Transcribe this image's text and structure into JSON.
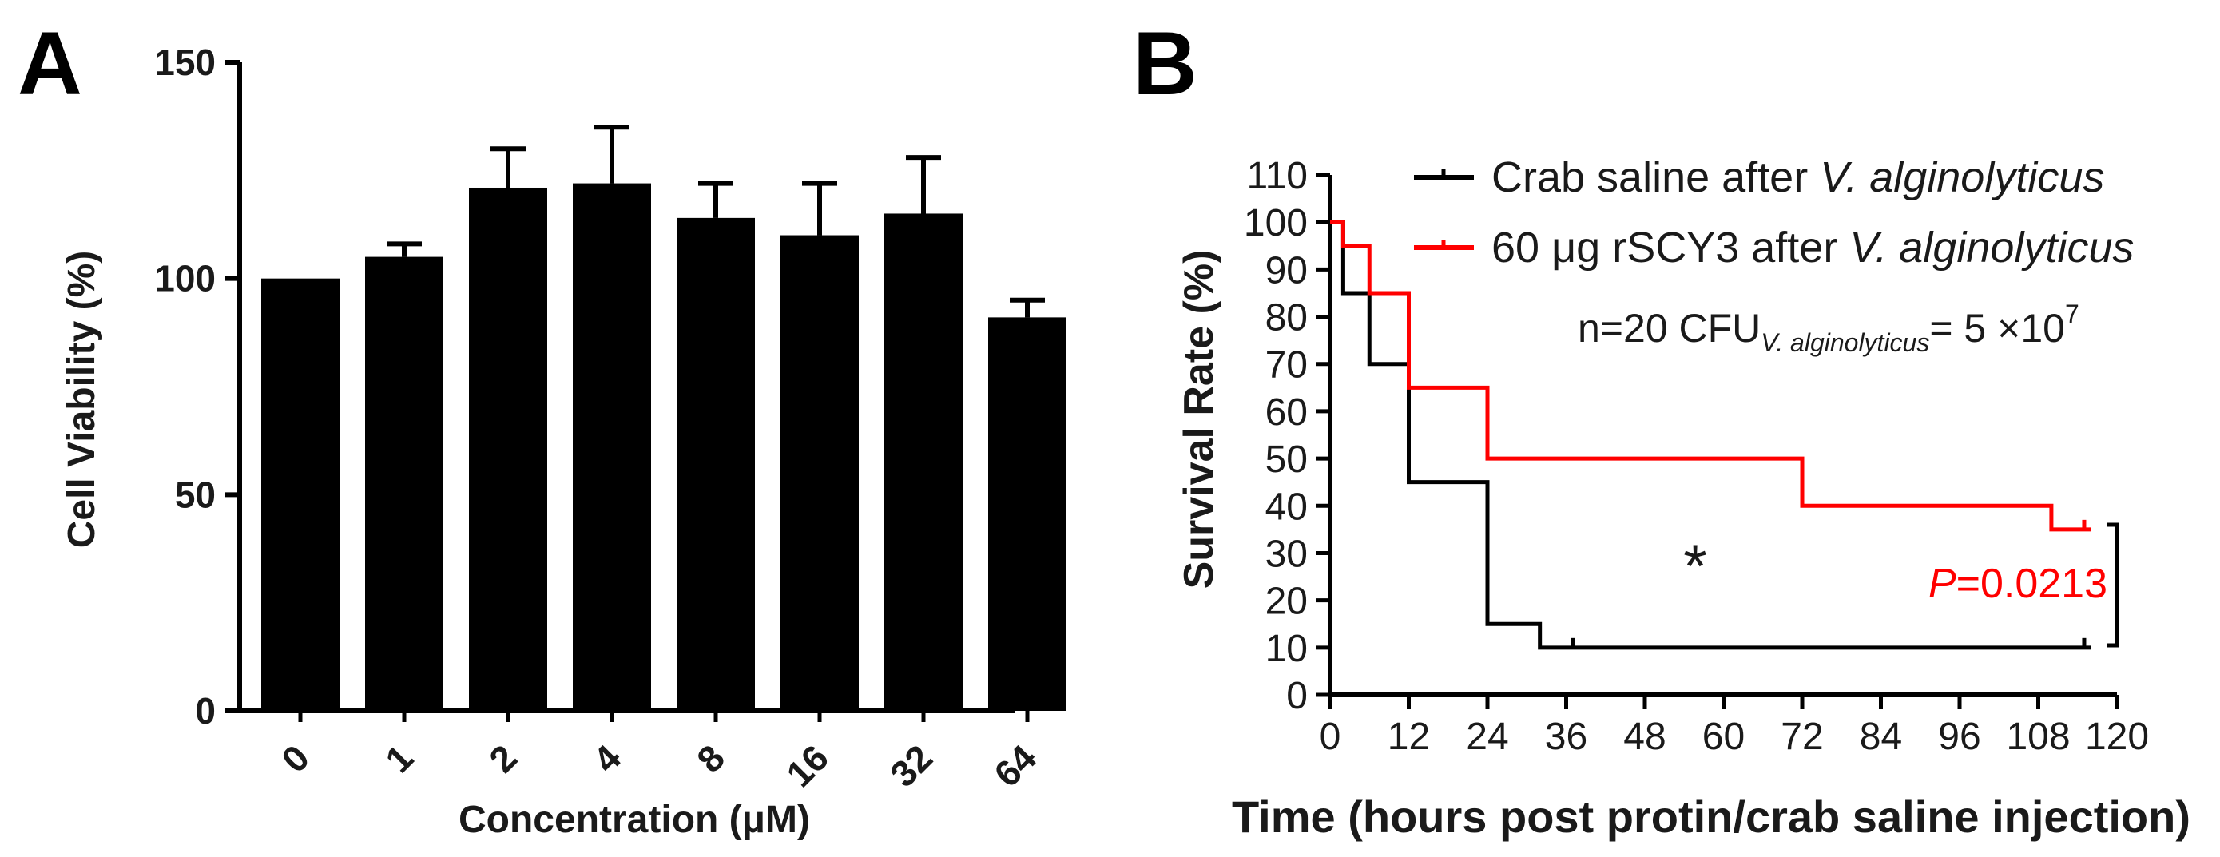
{
  "colors": {
    "black": "#000000",
    "red": "#ff0000",
    "text": "#1a1a1a"
  },
  "chart_data": [
    {
      "panel": "A",
      "type": "bar",
      "title": "",
      "xlabel": "Concentration (μM)",
      "ylabel": "Cell Viability (%)",
      "categories": [
        "0",
        "1",
        "2",
        "4",
        "8",
        "16",
        "32",
        "64"
      ],
      "values": [
        100,
        105,
        121,
        122,
        114,
        110,
        115,
        91
      ],
      "errors": [
        0,
        3,
        9,
        13,
        8,
        12,
        13,
        4
      ],
      "ylim": [
        0,
        150
      ],
      "yticks": [
        "0",
        "50",
        "100",
        "150"
      ]
    },
    {
      "panel": "B",
      "type": "line",
      "subtype": "kaplan-meier",
      "title": "",
      "xlabel": "Time (hours post protin/crab saline injection)",
      "ylabel": "Survival Rate (%)",
      "xlim": [
        0,
        120
      ],
      "ylim": [
        0,
        110
      ],
      "xticks": [
        "0",
        "12",
        "24",
        "36",
        "48",
        "60",
        "72",
        "84",
        "96",
        "108",
        "120"
      ],
      "yticks": [
        "0",
        "10",
        "20",
        "30",
        "40",
        "50",
        "60",
        "70",
        "80",
        "90",
        "100",
        "110"
      ],
      "series": [
        {
          "name_prefix": "Crab saline after ",
          "name_italic": "V. alginolyticus",
          "color": "#000000",
          "steps": [
            [
              0,
              100
            ],
            [
              2,
              85
            ],
            [
              6,
              70
            ],
            [
              12,
              45
            ],
            [
              24,
              15
            ],
            [
              32,
              10
            ],
            [
              116,
              10
            ]
          ],
          "censored": [
            [
              12,
              70
            ],
            [
              37,
              10
            ],
            [
              115,
              10
            ]
          ]
        },
        {
          "name_prefix": "60 μg rSCY3 after ",
          "name_italic": "V. alginolyticus",
          "color": "#ff0000",
          "steps": [
            [
              0,
              100
            ],
            [
              2,
              95
            ],
            [
              6,
              85
            ],
            [
              12,
              65
            ],
            [
              24,
              50
            ],
            [
              72,
              40
            ],
            [
              110,
              35
            ],
            [
              116,
              35
            ]
          ],
          "censored": [
            [
              24,
              50
            ],
            [
              72,
              40
            ],
            [
              115,
              35
            ]
          ]
        }
      ],
      "annotations": {
        "n_text": "n=20  CFU",
        "cfu_subscript": "V. alginolyticus",
        "cfu_value": "= 5 ×10",
        "cfu_exponent": "7",
        "significance": "*",
        "p_label": "P",
        "p_value": "=0.0213"
      }
    }
  ],
  "panel_labels": {
    "a": "A",
    "b": "B"
  }
}
